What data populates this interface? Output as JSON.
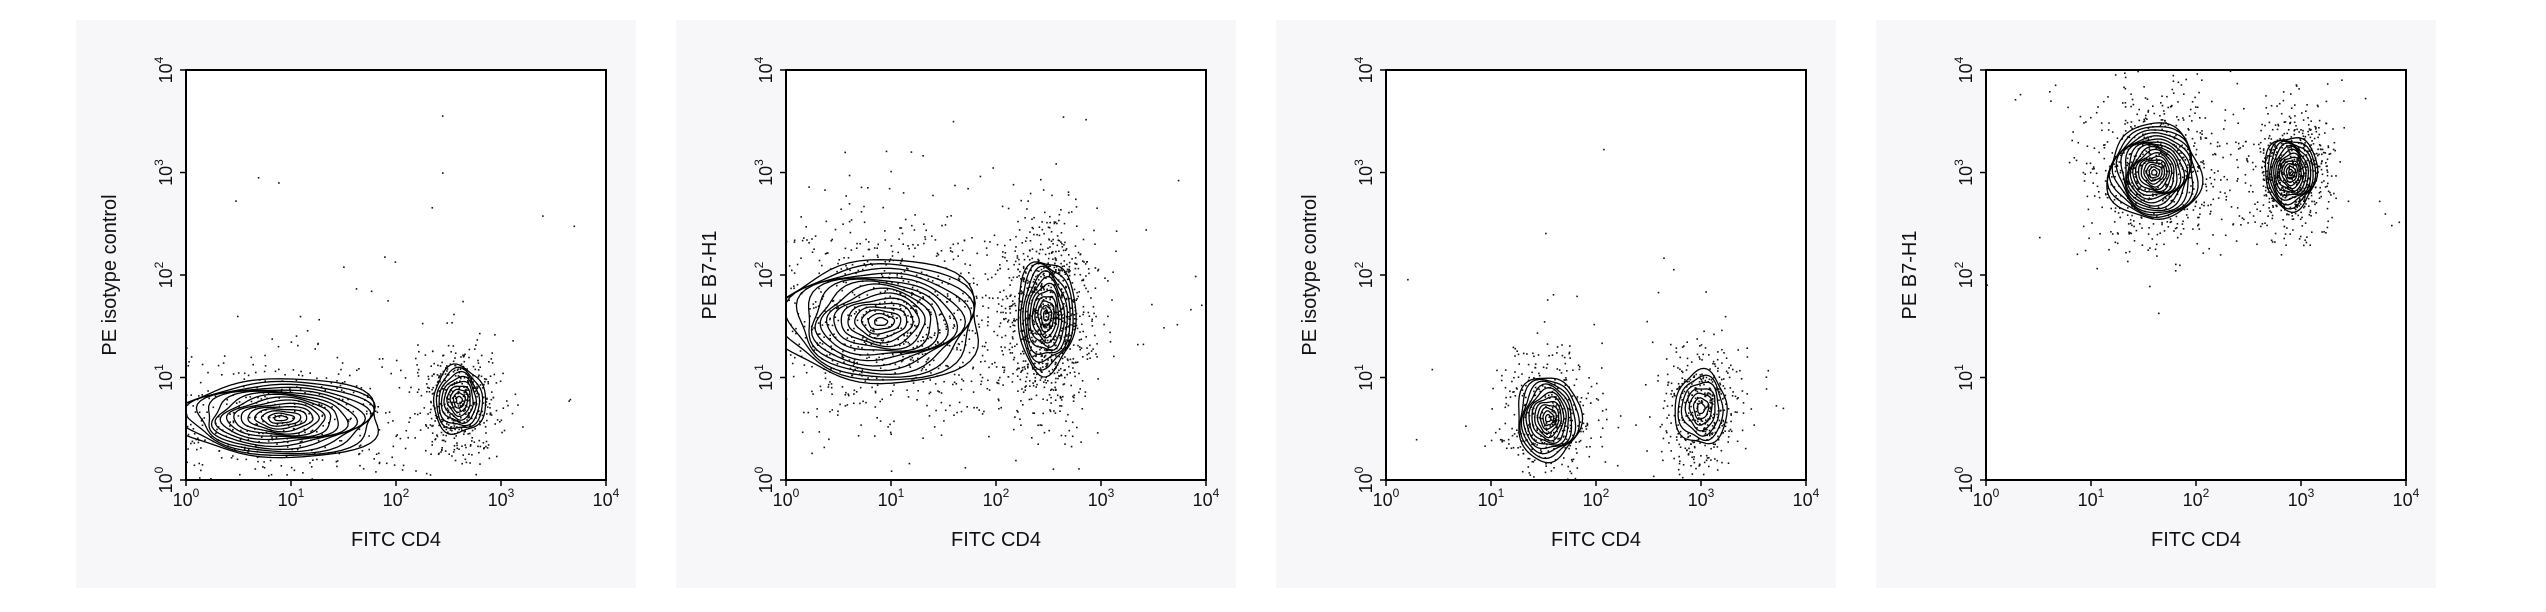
{
  "chart_data": [
    {
      "type": "contour",
      "xlabel": "FITC CD4",
      "ylabel": "PE isotype control",
      "x_scale": "log",
      "y_scale": "log",
      "xlim": [
        1,
        10000
      ],
      "ylim": [
        1,
        10000
      ],
      "x_ticks": [
        {
          "base": "10",
          "exp": "0"
        },
        {
          "base": "10",
          "exp": "1"
        },
        {
          "base": "10",
          "exp": "2"
        },
        {
          "base": "10",
          "exp": "3"
        },
        {
          "base": "10",
          "exp": "4"
        }
      ],
      "y_ticks": [
        {
          "base": "10",
          "exp": "0"
        },
        {
          "base": "10",
          "exp": "1"
        },
        {
          "base": "10",
          "exp": "2"
        },
        {
          "base": "10",
          "exp": "3"
        },
        {
          "base": "10",
          "exp": "4"
        }
      ],
      "populations": [
        {
          "x": 8,
          "y": 4,
          "sx": 1.8,
          "sy": 0.7,
          "rings": 16
        },
        {
          "x": 400,
          "y": 6,
          "sx": 0.45,
          "sy": 0.6,
          "rings": 9
        }
      ],
      "scatter_density": 0.5
    },
    {
      "type": "contour",
      "xlabel": "FITC CD4",
      "ylabel": "PE B7-H1",
      "x_scale": "log",
      "y_scale": "log",
      "xlim": [
        1,
        10000
      ],
      "ylim": [
        1,
        10000
      ],
      "x_ticks": [
        {
          "base": "10",
          "exp": "0"
        },
        {
          "base": "10",
          "exp": "1"
        },
        {
          "base": "10",
          "exp": "2"
        },
        {
          "base": "10",
          "exp": "3"
        },
        {
          "base": "10",
          "exp": "4"
        }
      ],
      "y_ticks": [
        {
          "base": "10",
          "exp": "0"
        },
        {
          "base": "10",
          "exp": "1"
        },
        {
          "base": "10",
          "exp": "2"
        },
        {
          "base": "10",
          "exp": "3"
        },
        {
          "base": "10",
          "exp": "4"
        }
      ],
      "populations": [
        {
          "x": 8,
          "y": 35,
          "sx": 1.8,
          "sy": 1.1,
          "rings": 16
        },
        {
          "x": 300,
          "y": 40,
          "sx": 0.5,
          "sy": 1.0,
          "rings": 11
        }
      ],
      "scatter_density": 1.0
    },
    {
      "type": "contour",
      "xlabel": "FITC CD4",
      "ylabel": "PE isotype control",
      "x_scale": "log",
      "y_scale": "log",
      "xlim": [
        1,
        10000
      ],
      "ylim": [
        1,
        10000
      ],
      "x_ticks": [
        {
          "base": "10",
          "exp": "0"
        },
        {
          "base": "10",
          "exp": "1"
        },
        {
          "base": "10",
          "exp": "2"
        },
        {
          "base": "10",
          "exp": "3"
        },
        {
          "base": "10",
          "exp": "4"
        }
      ],
      "y_ticks": [
        {
          "base": "10",
          "exp": "0"
        },
        {
          "base": "10",
          "exp": "1"
        },
        {
          "base": "10",
          "exp": "2"
        },
        {
          "base": "10",
          "exp": "3"
        },
        {
          "base": "10",
          "exp": "4"
        }
      ],
      "populations": [
        {
          "x": 35,
          "y": 4,
          "sx": 0.55,
          "sy": 0.75,
          "rings": 12
        },
        {
          "x": 1000,
          "y": 5,
          "sx": 0.45,
          "sy": 0.65,
          "rings": 7
        }
      ],
      "scatter_density": 0.45
    },
    {
      "type": "contour",
      "xlabel": "FITC CD4",
      "ylabel": "PE B7-H1",
      "x_scale": "log",
      "y_scale": "log",
      "xlim": [
        1,
        10000
      ],
      "ylim": [
        1,
        10000
      ],
      "x_ticks": [
        {
          "base": "10",
          "exp": "0"
        },
        {
          "base": "10",
          "exp": "1"
        },
        {
          "base": "10",
          "exp": "2"
        },
        {
          "base": "10",
          "exp": "3"
        },
        {
          "base": "10",
          "exp": "4"
        }
      ],
      "y_ticks": [
        {
          "base": "10",
          "exp": "0"
        },
        {
          "base": "10",
          "exp": "1"
        },
        {
          "base": "10",
          "exp": "2"
        },
        {
          "base": "10",
          "exp": "3"
        },
        {
          "base": "10",
          "exp": "4"
        }
      ],
      "populations": [
        {
          "x": 40,
          "y": 1000,
          "sx": 0.8,
          "sy": 0.85,
          "rings": 18
        },
        {
          "x": 800,
          "y": 1000,
          "sx": 0.45,
          "sy": 0.65,
          "rings": 12
        }
      ],
      "scatter_density": 0.7
    }
  ]
}
